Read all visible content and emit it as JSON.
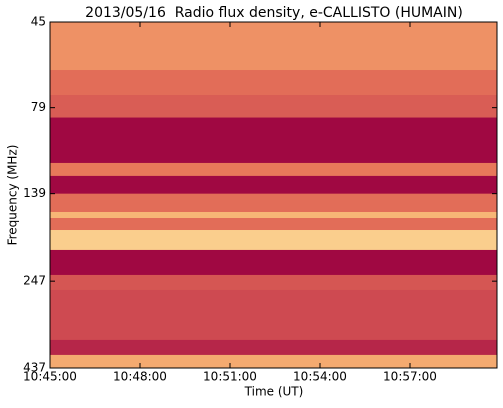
{
  "chart_data": {
    "type": "spectrogram",
    "title": "2013/05/16  Radio flux density, e-CALLISTO (HUMAIN)",
    "x_label": "Time (UT)",
    "y_label": "Frequency (MHz)",
    "xlim": [
      645,
      659.9
    ],
    "xticks": [
      {
        "value": 645,
        "label": "10:45:00"
      },
      {
        "value": 648,
        "label": "10:48:00"
      },
      {
        "value": 651,
        "label": "10:51:00"
      },
      {
        "value": 654,
        "label": "10:54:00"
      },
      {
        "value": 657,
        "label": "10:57:00"
      }
    ],
    "ylim": [
      45,
      437
    ],
    "yticks": [
      45,
      79,
      139,
      247,
      437
    ],
    "y_log": true,
    "y_inverted": true,
    "colormap": [
      "#9b0040",
      "#c83f4f",
      "#e8785a",
      "#f7b676",
      "#fff2b0"
    ],
    "bands": [
      {
        "from": 45,
        "to": 61.7,
        "level": 0.6
      },
      {
        "from": 61.7,
        "to": 72.7,
        "level": 0.45
      },
      {
        "from": 72.7,
        "to": 84.3,
        "level": 0.38
      },
      {
        "from": 84.3,
        "to": 113.6,
        "level": 0.03
      },
      {
        "from": 113.6,
        "to": 123.7,
        "level": 0.5
      },
      {
        "from": 123.7,
        "to": 139,
        "level": 0.03
      },
      {
        "from": 139,
        "to": 156.8,
        "level": 0.45
      },
      {
        "from": 156.8,
        "to": 163.1,
        "level": 0.75
      },
      {
        "from": 163.1,
        "to": 176.5,
        "level": 0.45
      },
      {
        "from": 176.5,
        "to": 201.2,
        "level": 0.85
      },
      {
        "from": 201.2,
        "to": 237.1,
        "level": 0.03
      },
      {
        "from": 237.1,
        "to": 261.7,
        "level": 0.35
      },
      {
        "from": 261.7,
        "to": 363.4,
        "level": 0.3
      },
      {
        "from": 363.4,
        "to": 401.0,
        "level": 0.15
      },
      {
        "from": 401.0,
        "to": 437,
        "level": 0.7
      }
    ]
  }
}
